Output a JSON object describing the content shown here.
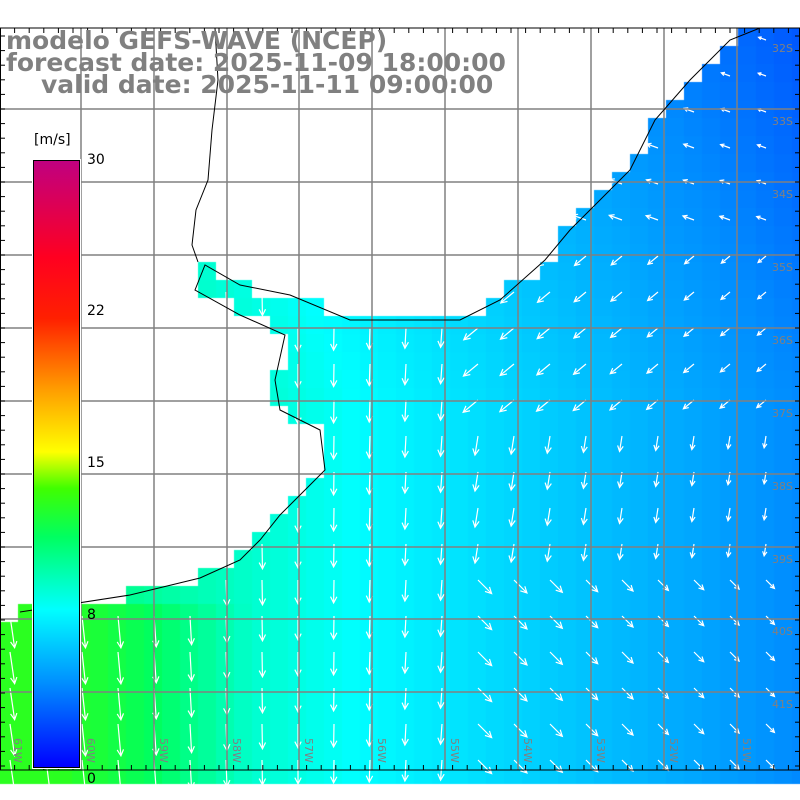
{
  "title": {
    "line1": "modelo GEFS-WAVE (NCEP)",
    "line2": "forecast date: 2025-11-09 18:00:00",
    "line3": "valid date: 2025-11-11 09:00:00"
  },
  "colorbar": {
    "unit": "[m/s]",
    "ticks": [
      "30",
      "22",
      "15",
      "8",
      "0"
    ],
    "min": 0,
    "max": 30
  },
  "axes": {
    "lon_labels": [
      "61W",
      "60W",
      "59W",
      "58W",
      "57W",
      "56W",
      "55W",
      "54W",
      "53W",
      "52W",
      "51W"
    ],
    "lat_labels": [
      "32S",
      "33S",
      "34S",
      "35S",
      "36S",
      "37S",
      "38S",
      "39S",
      "40S",
      "41S"
    ]
  },
  "colors": {
    "grid": "#808080",
    "label": "#808080",
    "coast": "#000000"
  }
}
